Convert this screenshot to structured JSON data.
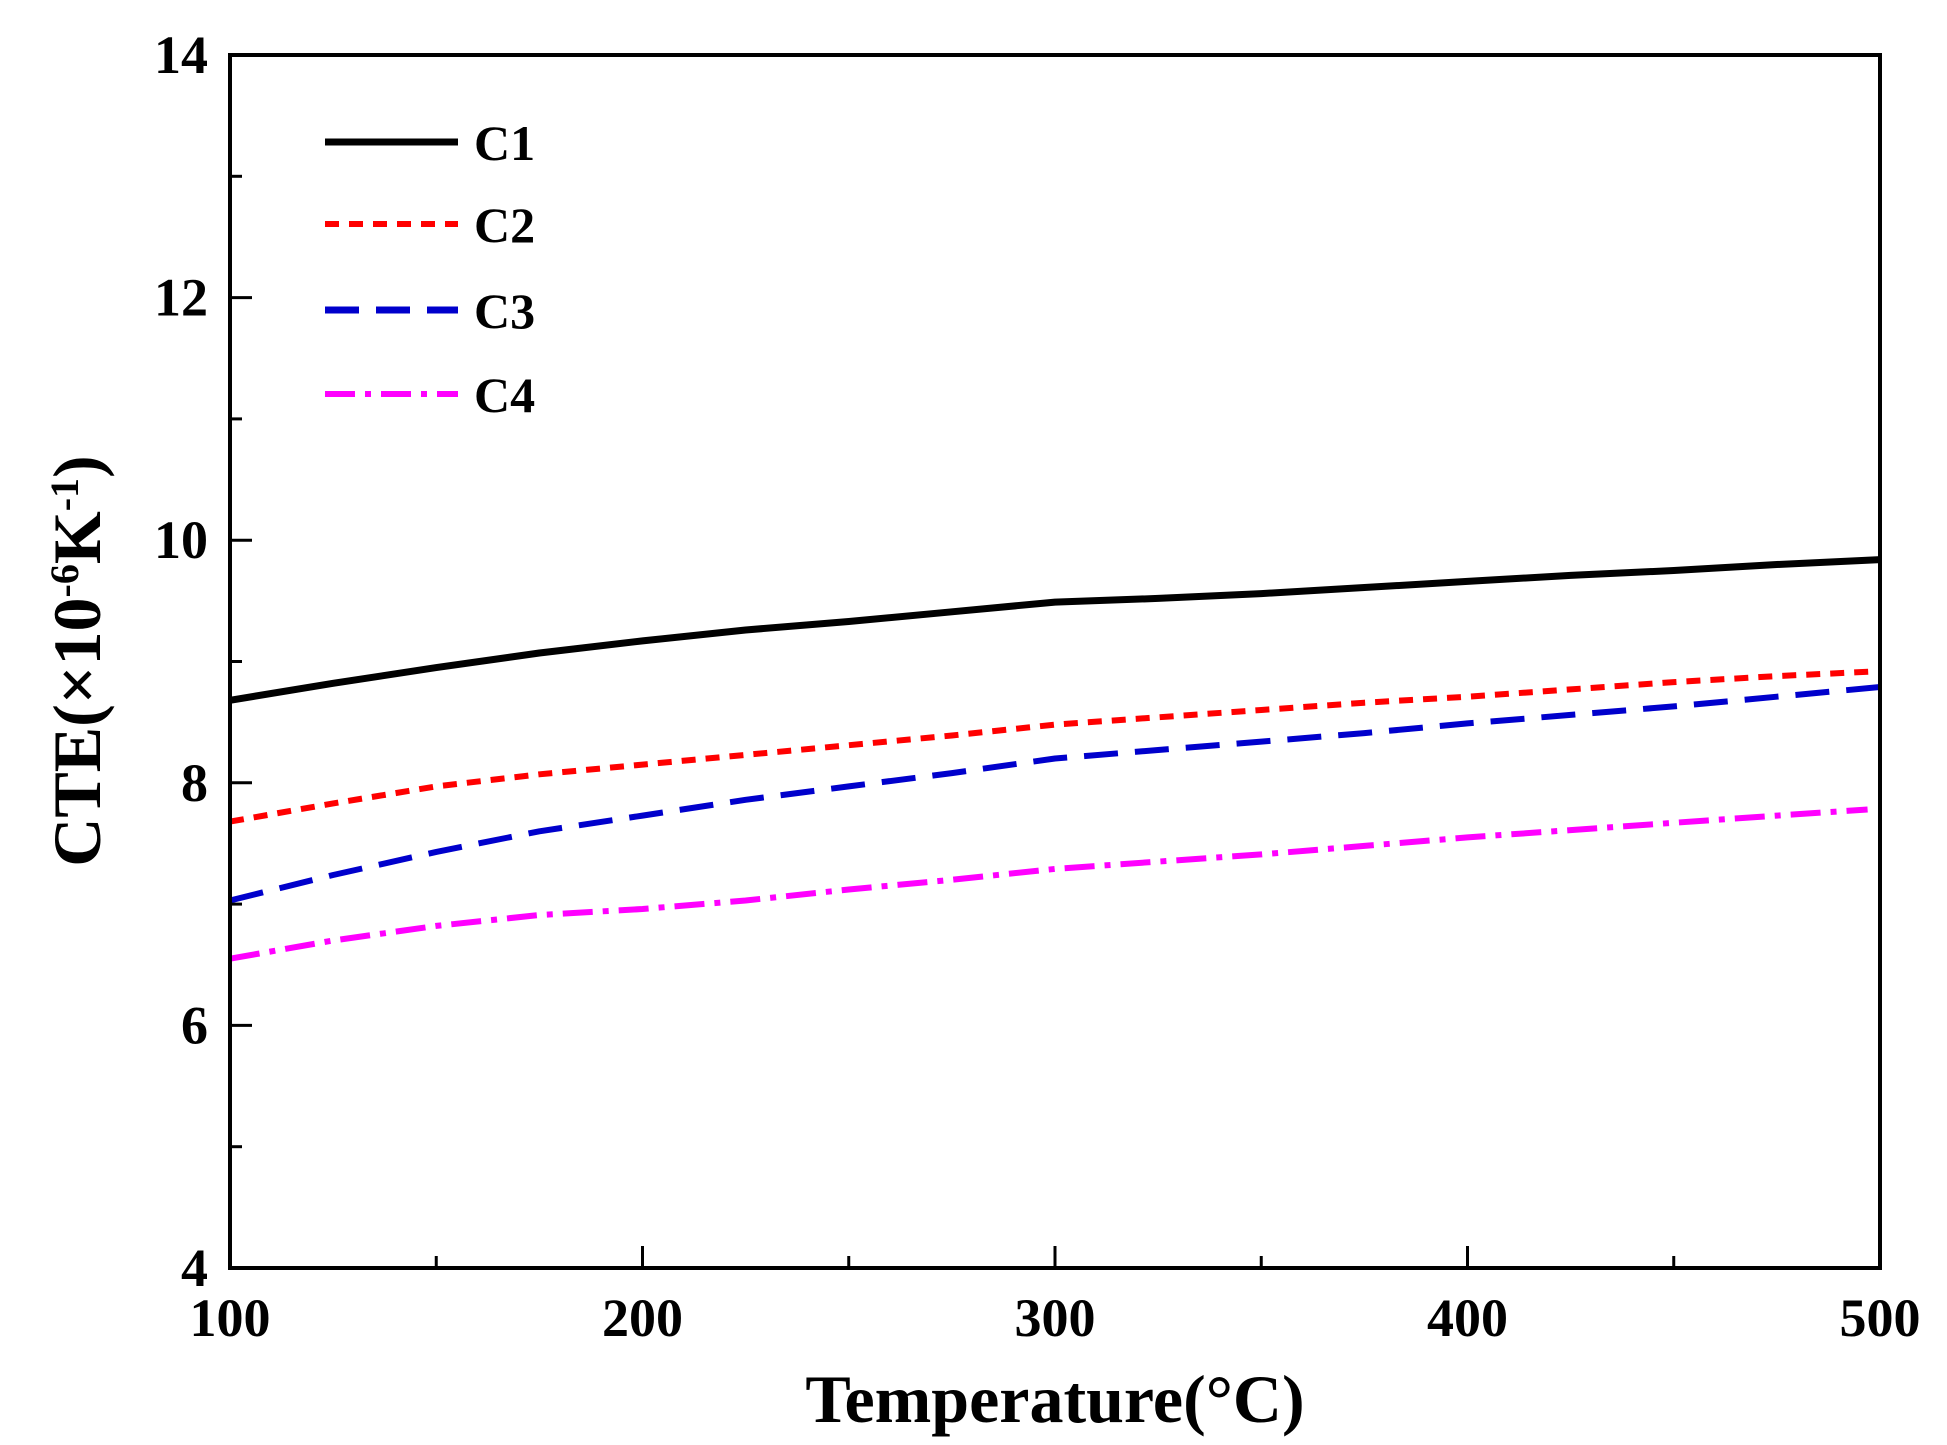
{
  "chart_data": {
    "type": "line",
    "title": "",
    "xlabel": "Temperature(°C)",
    "ylabel": {
      "prefix": "CTE(×10",
      "exp1": "-6",
      "mid": "K",
      "exp2": "-1",
      "suffix": ")"
    },
    "xlim": [
      100,
      500
    ],
    "ylim": [
      4,
      14
    ],
    "x_major_ticks": [
      100,
      200,
      300,
      400,
      500
    ],
    "x_tick_labels": [
      "100",
      "200",
      "300",
      "400",
      "500"
    ],
    "x_minor_ticks": [
      150,
      250,
      350,
      450
    ],
    "y_major_ticks": [
      4,
      6,
      8,
      10,
      12,
      14
    ],
    "y_tick_labels": [
      "4",
      "6",
      "8",
      "10",
      "12",
      "14"
    ],
    "y_minor_ticks": [
      5,
      7,
      9,
      11,
      13
    ],
    "grid": false,
    "legend_position": "top-left",
    "series": [
      {
        "name": "C1",
        "color": "#000000",
        "dash": "solid",
        "x": [
          100,
          125,
          150,
          175,
          200,
          225,
          250,
          275,
          300,
          325,
          350,
          375,
          400,
          425,
          450,
          475,
          500
        ],
        "y": [
          8.68,
          8.82,
          8.95,
          9.07,
          9.17,
          9.26,
          9.33,
          9.41,
          9.49,
          9.52,
          9.56,
          9.61,
          9.66,
          9.71,
          9.75,
          9.8,
          9.84
        ]
      },
      {
        "name": "C2",
        "color": "#ff0000",
        "dash": "short-dash",
        "x": [
          100,
          125,
          150,
          175,
          200,
          225,
          250,
          275,
          300,
          325,
          350,
          375,
          400,
          425,
          450,
          475,
          500
        ],
        "y": [
          7.68,
          7.83,
          7.97,
          8.07,
          8.15,
          8.23,
          8.31,
          8.39,
          8.48,
          8.54,
          8.6,
          8.66,
          8.71,
          8.77,
          8.83,
          8.88,
          8.92
        ]
      },
      {
        "name": "C3",
        "color": "#0000cc",
        "dash": "long-dash",
        "x": [
          100,
          125,
          150,
          175,
          200,
          225,
          250,
          275,
          300,
          325,
          350,
          375,
          400,
          425,
          450,
          475,
          500
        ],
        "y": [
          7.03,
          7.24,
          7.43,
          7.6,
          7.73,
          7.86,
          7.97,
          8.08,
          8.2,
          8.27,
          8.34,
          8.41,
          8.49,
          8.56,
          8.63,
          8.71,
          8.79
        ]
      },
      {
        "name": "C4",
        "color": "#ff00ff",
        "dash": "dash-dot",
        "x": [
          100,
          125,
          150,
          175,
          200,
          225,
          250,
          275,
          300,
          325,
          350,
          375,
          400,
          425,
          450,
          475,
          497
        ],
        "y": [
          6.55,
          6.7,
          6.82,
          6.91,
          6.96,
          7.03,
          7.12,
          7.2,
          7.29,
          7.35,
          7.41,
          7.48,
          7.55,
          7.61,
          7.67,
          7.73,
          7.78
        ]
      }
    ]
  }
}
